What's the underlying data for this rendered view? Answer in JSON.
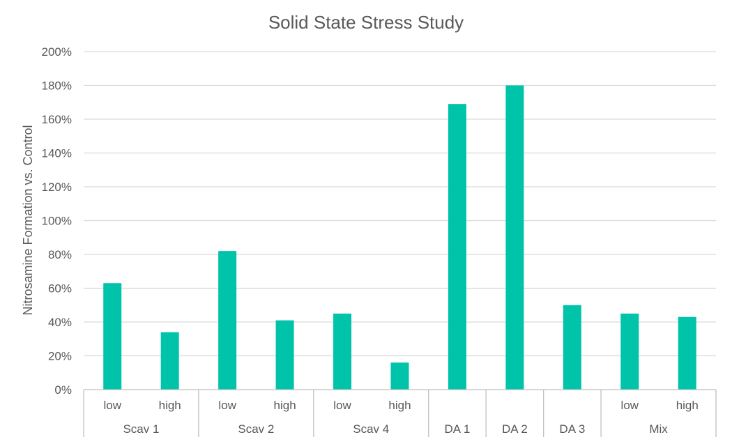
{
  "chart_data": {
    "type": "bar",
    "title": "Solid State Stress Study",
    "xlabel": "",
    "ylabel": "Nitrosamine Formation vs. Control",
    "ylim": [
      0,
      200
    ],
    "y_ticks": [
      "0%",
      "20%",
      "40%",
      "60%",
      "80%",
      "100%",
      "120%",
      "140%",
      "160%",
      "180%",
      "200%"
    ],
    "y_unit": "%",
    "grid": true,
    "legend": "none",
    "bar_color": "#00c4aa",
    "groups": [
      {
        "label": "Scav 1",
        "categories": [
          "low",
          "high"
        ],
        "values": [
          63,
          34
        ]
      },
      {
        "label": "Scav 2",
        "categories": [
          "low",
          "high"
        ],
        "values": [
          82,
          41
        ]
      },
      {
        "label": "Scav 4",
        "categories": [
          "low",
          "high"
        ],
        "values": [
          45,
          16
        ]
      },
      {
        "label": "DA 1",
        "categories": [
          ""
        ],
        "values": [
          169
        ]
      },
      {
        "label": "DA 2",
        "categories": [
          ""
        ],
        "values": [
          180
        ]
      },
      {
        "label": "DA 3",
        "categories": [
          ""
        ],
        "values": [
          50
        ]
      },
      {
        "label": "Mix",
        "categories": [
          "low",
          "high"
        ],
        "values": [
          45,
          43
        ]
      }
    ]
  }
}
